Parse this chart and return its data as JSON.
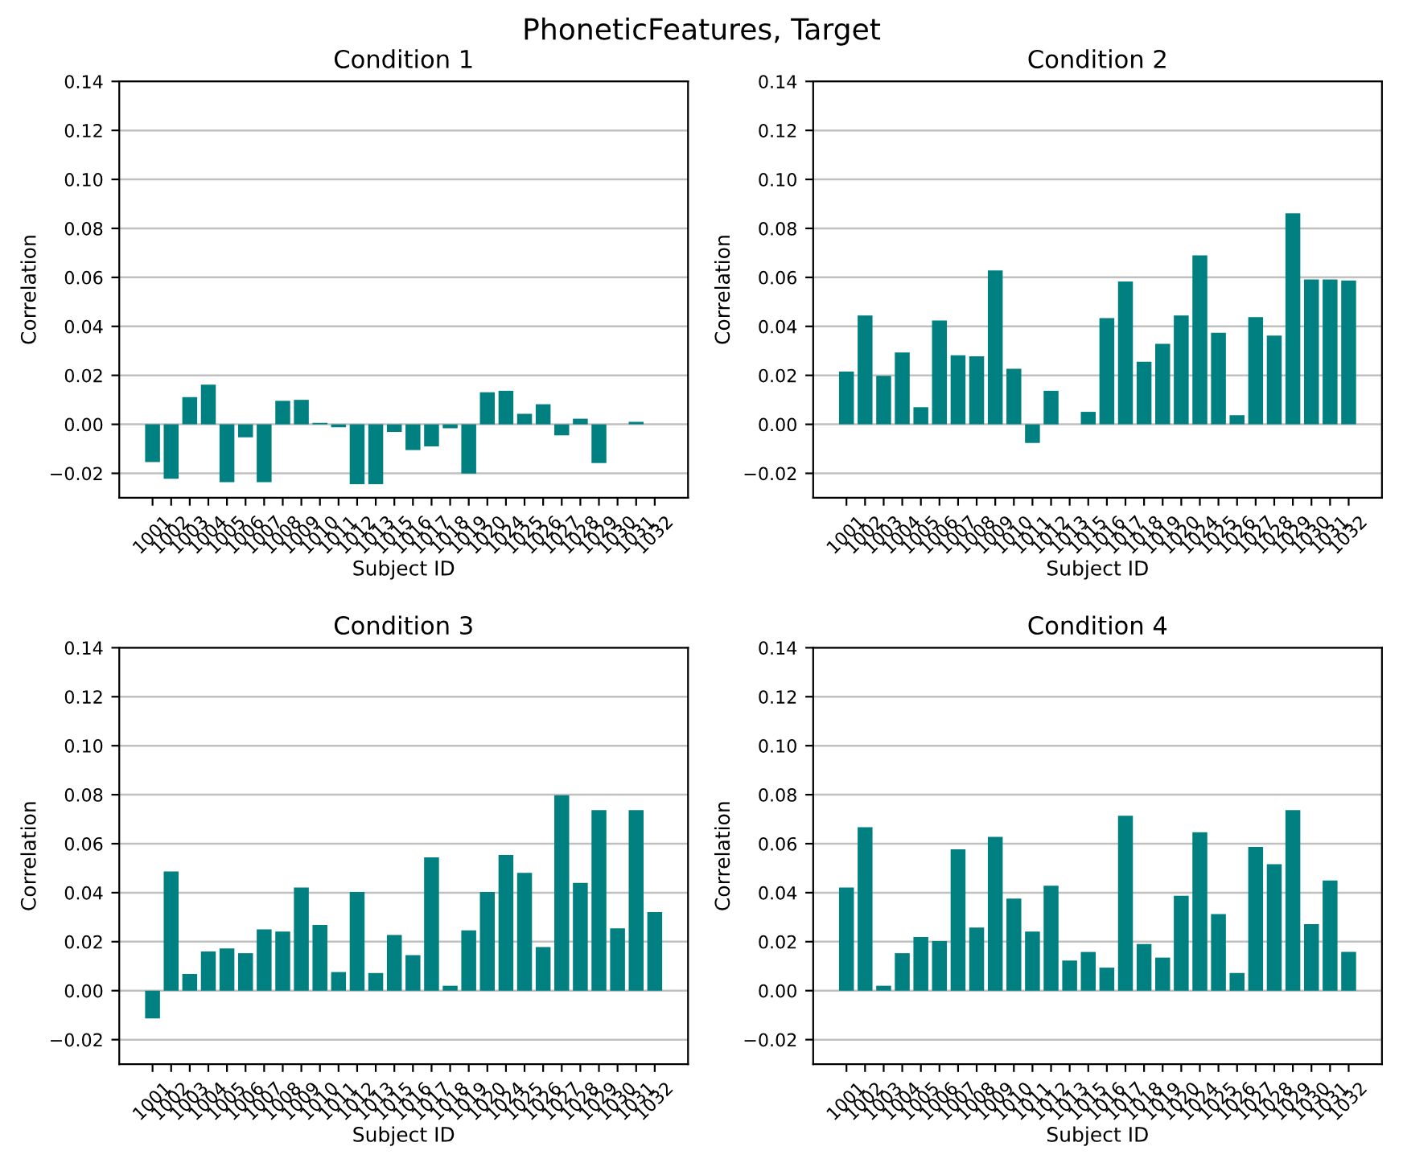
{
  "chart_data": [
    {
      "type": "bar",
      "title": "Condition 1",
      "xlabel": "Subject ID",
      "ylabel": "Correlation",
      "annotations": [
        "PhoneticFeatures, Target"
      ],
      "categories": [
        "1001",
        "1002",
        "1003",
        "1004",
        "1005",
        "1006",
        "1007",
        "1008",
        "1009",
        "1010",
        "1011",
        "1012",
        "1013",
        "1015",
        "1016",
        "1017",
        "1018",
        "1019",
        "1020",
        "1024",
        "1025",
        "1026",
        "1027",
        "1028",
        "1029",
        "1030",
        "1031",
        "1032"
      ],
      "color": "#008080",
      "values": [
        -0.0154,
        -0.0222,
        0.0111,
        0.0162,
        -0.0236,
        -0.0053,
        -0.0236,
        0.0096,
        0.01,
        0.0006,
        -0.0012,
        -0.0244,
        -0.0244,
        -0.0031,
        -0.0105,
        -0.009,
        -0.0016,
        -0.0201,
        0.0131,
        0.0137,
        0.0043,
        0.0082,
        -0.0045,
        0.0023,
        -0.0158,
        0,
        0.001,
        0
      ],
      "ylim": [
        -0.03,
        0.14
      ],
      "yticks": [
        {
          "value": -0.02,
          "label": "−0.02"
        },
        {
          "value": 0,
          "label": "0.00"
        },
        {
          "value": 0.02,
          "label": "0.02"
        },
        {
          "value": 0.04,
          "label": "0.04"
        },
        {
          "value": 0.06,
          "label": "0.06"
        },
        {
          "value": 0.08,
          "label": "0.08"
        },
        {
          "value": 0.1,
          "label": "0.10"
        },
        {
          "value": 0.12,
          "label": "0.12"
        },
        {
          "value": 0.14,
          "label": "0.14"
        }
      ],
      "grid": "y"
    },
    {
      "type": "bar",
      "title": "Condition 2",
      "xlabel": "Subject ID",
      "ylabel": "Correlation",
      "categories": [
        "1001",
        "1002",
        "1003",
        "1004",
        "1005",
        "1006",
        "1007",
        "1008",
        "1009",
        "1010",
        "1011",
        "1012",
        "1013",
        "1015",
        "1016",
        "1017",
        "1018",
        "1019",
        "1020",
        "1024",
        "1025",
        "1026",
        "1027",
        "1028",
        "1029",
        "1030",
        "1031",
        "1032"
      ],
      "color": "#008080",
      "values": [
        0.0215,
        0.0444,
        0.0198,
        0.0293,
        0.007,
        0.0424,
        0.0282,
        0.0278,
        0.0628,
        0.0227,
        -0.0076,
        0.0137,
        0,
        0.0051,
        0.0434,
        0.0583,
        0.0256,
        0.0329,
        0.0444,
        0.069,
        0.0374,
        0.0037,
        0.0438,
        0.0362,
        0.0861,
        0.0591,
        0.0591,
        0.0587
      ],
      "ylim": [
        -0.03,
        0.14
      ],
      "yticks": [
        {
          "value": -0.02,
          "label": "−0.02"
        },
        {
          "value": 0,
          "label": "0.00"
        },
        {
          "value": 0.02,
          "label": "0.02"
        },
        {
          "value": 0.04,
          "label": "0.04"
        },
        {
          "value": 0.06,
          "label": "0.06"
        },
        {
          "value": 0.08,
          "label": "0.08"
        },
        {
          "value": 0.1,
          "label": "0.10"
        },
        {
          "value": 0.12,
          "label": "0.12"
        },
        {
          "value": 0.14,
          "label": "0.14"
        }
      ],
      "grid": "y"
    },
    {
      "type": "bar",
      "title": "Condition 3",
      "xlabel": "Subject ID",
      "ylabel": "Correlation",
      "categories": [
        "1001",
        "1002",
        "1003",
        "1004",
        "1005",
        "1006",
        "1007",
        "1008",
        "1009",
        "1010",
        "1011",
        "1012",
        "1013",
        "1015",
        "1016",
        "1017",
        "1018",
        "1019",
        "1020",
        "1024",
        "1025",
        "1026",
        "1027",
        "1028",
        "1029",
        "1030",
        "1031",
        "1032"
      ],
      "color": "#008080",
      "values": [
        -0.0113,
        0.0487,
        0.0068,
        0.016,
        0.0172,
        0.0153,
        0.025,
        0.0241,
        0.0421,
        0.0268,
        0.0076,
        0.0403,
        0.0072,
        0.0227,
        0.0145,
        0.0544,
        0.002,
        0.0246,
        0.0403,
        0.0554,
        0.0481,
        0.0178,
        0.0798,
        0.044,
        0.0737,
        0.0254,
        0.0737,
        0.0321
      ],
      "ylim": [
        -0.03,
        0.14
      ],
      "yticks": [
        {
          "value": -0.02,
          "label": "−0.02"
        },
        {
          "value": 0,
          "label": "0.00"
        },
        {
          "value": 0.02,
          "label": "0.02"
        },
        {
          "value": 0.04,
          "label": "0.04"
        },
        {
          "value": 0.06,
          "label": "0.06"
        },
        {
          "value": 0.08,
          "label": "0.08"
        },
        {
          "value": 0.1,
          "label": "0.10"
        },
        {
          "value": 0.12,
          "label": "0.12"
        },
        {
          "value": 0.14,
          "label": "0.14"
        }
      ],
      "grid": "y"
    },
    {
      "type": "bar",
      "title": "Condition 4",
      "xlabel": "Subject ID",
      "ylabel": "Correlation",
      "categories": [
        "1001",
        "1002",
        "1003",
        "1004",
        "1005",
        "1006",
        "1007",
        "1008",
        "1009",
        "1010",
        "1011",
        "1012",
        "1013",
        "1015",
        "1016",
        "1017",
        "1018",
        "1019",
        "1020",
        "1024",
        "1025",
        "1026",
        "1027",
        "1028",
        "1029",
        "1030",
        "1031",
        "1032"
      ],
      "color": "#008080",
      "values": [
        0.0421,
        0.0667,
        0.002,
        0.0153,
        0.0219,
        0.0203,
        0.0577,
        0.0258,
        0.0628,
        0.0376,
        0.0241,
        0.0428,
        0.0123,
        0.0158,
        0.0094,
        0.0714,
        0.019,
        0.0135,
        0.0387,
        0.0647,
        0.0313,
        0.0072,
        0.0587,
        0.0516,
        0.0737,
        0.0272,
        0.045,
        0.0158
      ],
      "ylim": [
        -0.03,
        0.14
      ],
      "yticks": [
        {
          "value": -0.02,
          "label": "−0.02"
        },
        {
          "value": 0,
          "label": "0.00"
        },
        {
          "value": 0.02,
          "label": "0.02"
        },
        {
          "value": 0.04,
          "label": "0.04"
        },
        {
          "value": 0.06,
          "label": "0.06"
        },
        {
          "value": 0.08,
          "label": "0.08"
        },
        {
          "value": 0.1,
          "label": "0.10"
        },
        {
          "value": 0.12,
          "label": "0.12"
        },
        {
          "value": 0.14,
          "label": "0.14"
        }
      ],
      "grid": "y"
    }
  ]
}
